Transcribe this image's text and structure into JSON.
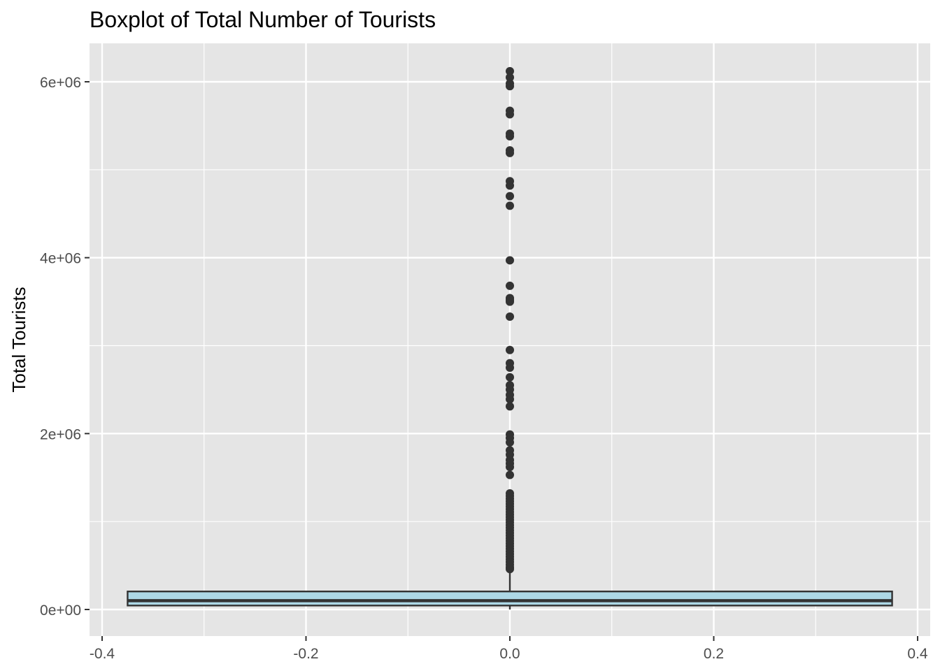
{
  "chart_data": {
    "type": "boxplot",
    "title": "Boxplot of Total Number of Tourists",
    "xlabel": "",
    "ylabel": "Total Tourists",
    "xlim": [
      -0.4,
      0.4
    ],
    "ylim": [
      0,
      6000000
    ],
    "x_ticks": [
      {
        "value": -0.4,
        "label": "-0.4"
      },
      {
        "value": -0.2,
        "label": "-0.2"
      },
      {
        "value": 0.0,
        "label": "0.0"
      },
      {
        "value": 0.2,
        "label": "0.2"
      },
      {
        "value": 0.4,
        "label": "0.4"
      }
    ],
    "y_ticks": [
      {
        "value": 0,
        "label": "0e+00"
      },
      {
        "value": 2000000,
        "label": "2e+06"
      },
      {
        "value": 4000000,
        "label": "4e+06"
      },
      {
        "value": 6000000,
        "label": "6e+06"
      }
    ],
    "grid": true,
    "box": {
      "x": 0.0,
      "x_min": -0.375,
      "x_max": 0.375,
      "q1": 45000,
      "median": 100000,
      "q3": 205000,
      "whisker_low": 0,
      "whisker_high": 450000,
      "fill": "#add8e6",
      "outline": "#333333"
    },
    "outliers": [
      6120000,
      6050000,
      5980000,
      5950000,
      5670000,
      5630000,
      5410000,
      5380000,
      5220000,
      5190000,
      4870000,
      4820000,
      4700000,
      4590000,
      3970000,
      3680000,
      3540000,
      3520000,
      3500000,
      3330000,
      2950000,
      2800000,
      2750000,
      2640000,
      2550000,
      2500000,
      2440000,
      2390000,
      2310000,
      1990000,
      1950000,
      1900000,
      1810000,
      1760000,
      1700000,
      1660000,
      1620000,
      1530000,
      1320000,
      1290000,
      1260000,
      1230000,
      1200000,
      1170000,
      1140000,
      1110000,
      1080000,
      1050000,
      1020000,
      990000,
      960000,
      930000,
      900000,
      870000,
      840000,
      810000,
      780000,
      750000,
      720000,
      690000,
      660000,
      630000,
      600000,
      570000,
      540000,
      510000,
      480000,
      460000
    ],
    "colors": {
      "panel": "#e5e5e5",
      "grid_major": "#ffffff",
      "point": "#333333"
    }
  }
}
